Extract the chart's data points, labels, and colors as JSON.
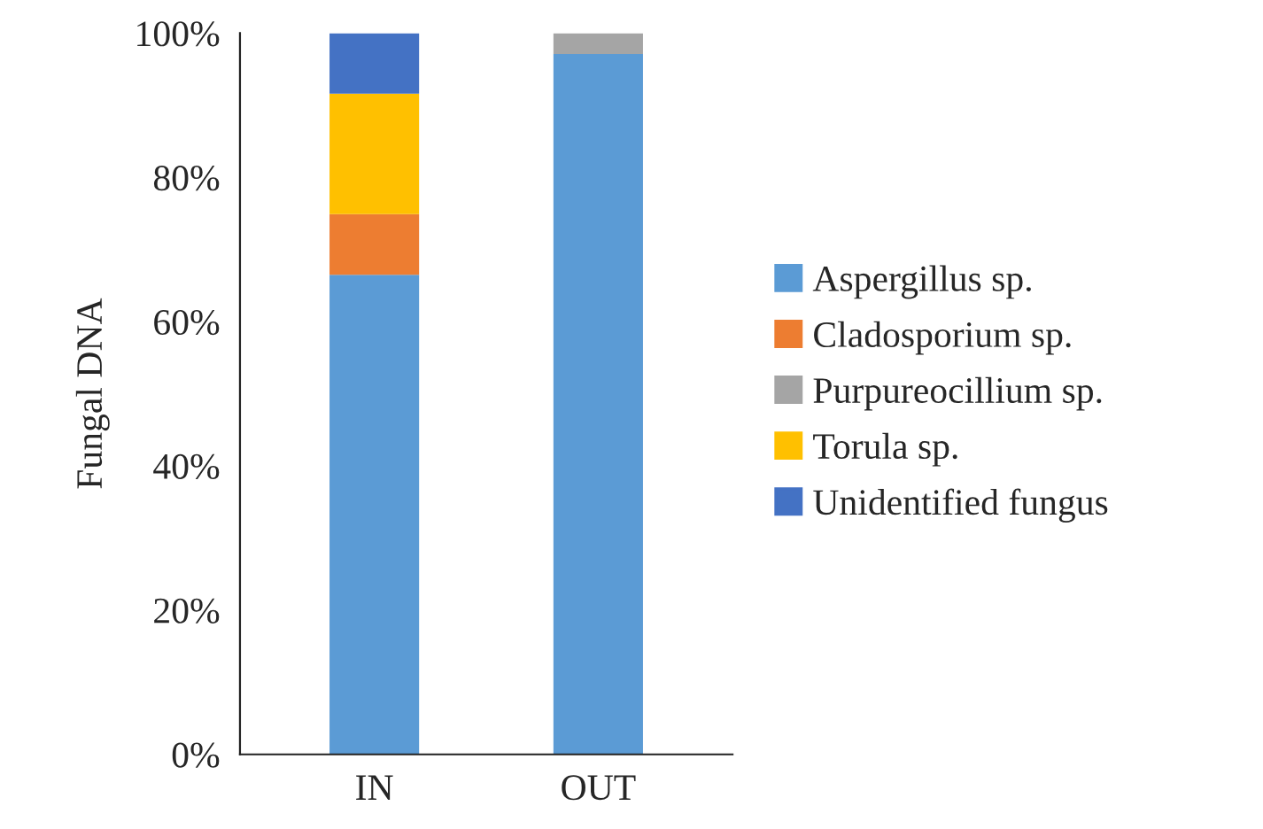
{
  "chart_data": {
    "type": "bar",
    "stacked": true,
    "ylabel": "Fungal DNA",
    "categories": [
      "IN",
      "OUT"
    ],
    "series": [
      {
        "name": "Aspergillus sp.",
        "color": "#5b9bd5",
        "values": [
          66.5,
          97.1
        ]
      },
      {
        "name": "Cladosporium sp.",
        "color": "#ed7d31",
        "values": [
          8.4,
          null
        ]
      },
      {
        "name": "Purpureocillium sp.",
        "color": "#a5a5a5",
        "values": [
          null,
          2.9
        ]
      },
      {
        "name": "Torula sp.",
        "color": "#ffc000",
        "values": [
          16.7,
          null
        ]
      },
      {
        "name": "Unidentified fungus",
        "color": "#4472c4",
        "values": [
          8.4,
          null
        ]
      }
    ],
    "ylim": [
      0,
      100
    ],
    "yticks": [
      {
        "value": 0,
        "label": "0%"
      },
      {
        "value": 20,
        "label": "20%"
      },
      {
        "value": 40,
        "label": "40%"
      },
      {
        "value": 60,
        "label": "60%"
      },
      {
        "value": 80,
        "label": "80%"
      },
      {
        "value": 100,
        "label": "100%"
      }
    ],
    "grid": false,
    "legend": "right"
  }
}
